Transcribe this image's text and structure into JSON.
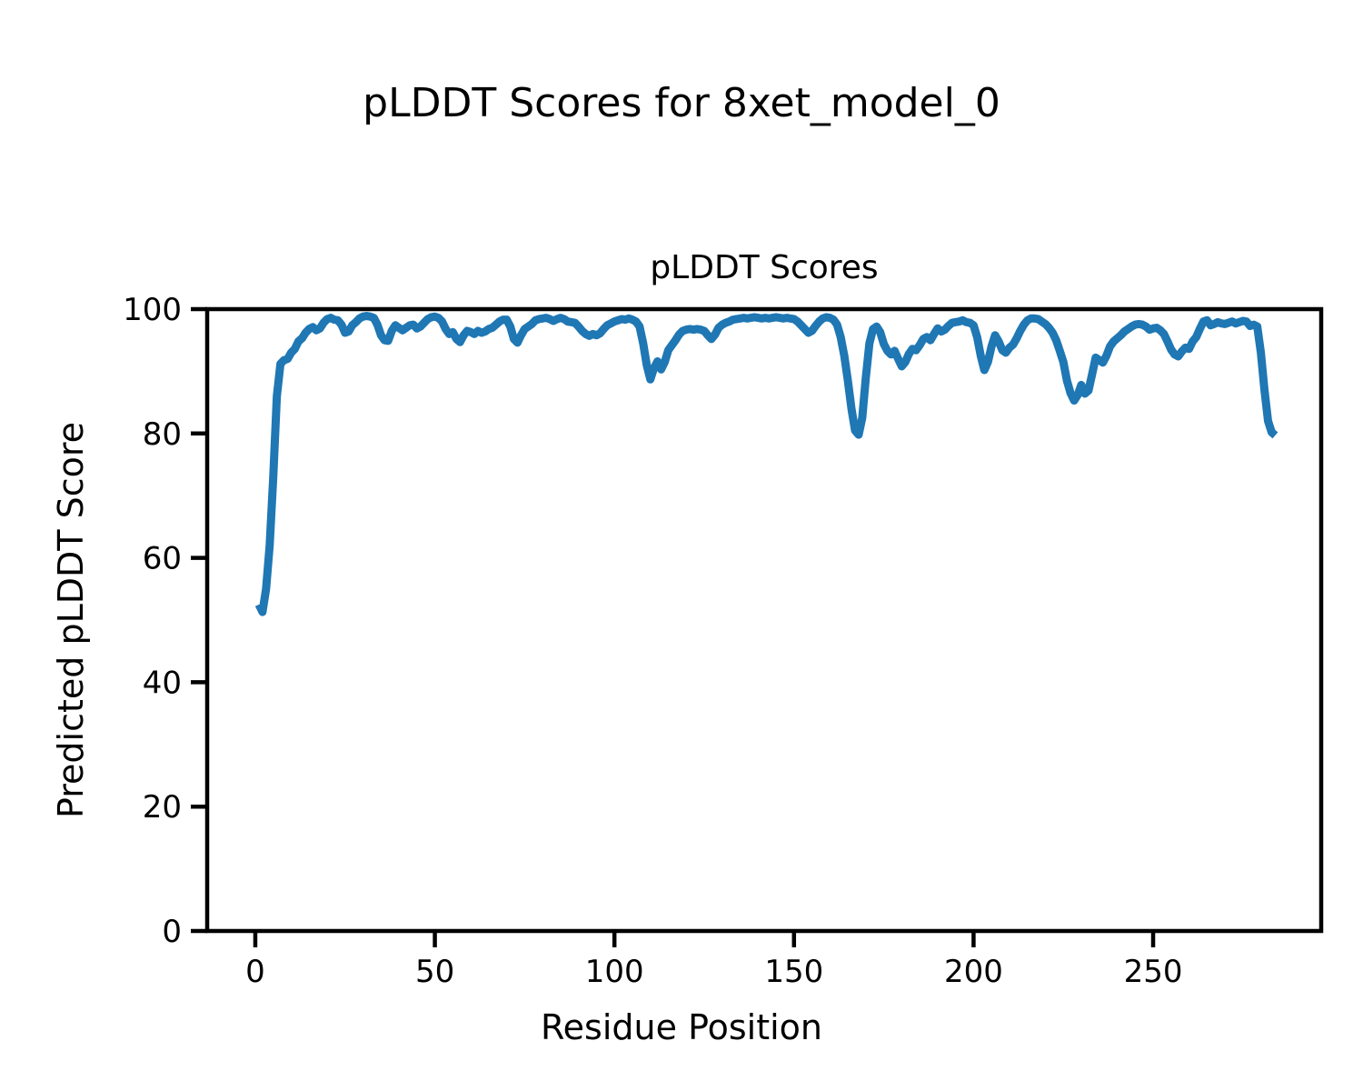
{
  "figure": {
    "title": "pLDDT Scores for 8xet_model_0",
    "axes_title": "pLDDT Scores",
    "xlabel": "Residue Position",
    "ylabel": "Predicted pLDDT Score"
  },
  "chart_data": {
    "type": "line",
    "title": "pLDDT Scores",
    "xlabel": "Residue Position",
    "ylabel": "Predicted pLDDT Score",
    "legend": "none",
    "grid": false,
    "line_color": "#1f77b4",
    "line_width": 9,
    "xlim": [
      -13.4,
      296.8
    ],
    "ylim": [
      0,
      100
    ],
    "xticks": [
      0,
      50,
      100,
      150,
      200,
      250
    ],
    "yticks": [
      0,
      20,
      40,
      60,
      80,
      100
    ],
    "x_start": 1,
    "x_step": 1,
    "series": [
      {
        "name": "pLDDT",
        "values": [
          52.5,
          51.3,
          55,
          62,
          73,
          86,
          91.2,
          91.8,
          92,
          93,
          93.6,
          94.8,
          95.3,
          96.2,
          96.8,
          97.1,
          96.6,
          96.9,
          97.8,
          98.4,
          98.6,
          98.3,
          98.2,
          97.5,
          96.2,
          96.4,
          97.4,
          97.9,
          98.5,
          98.8,
          98.9,
          98.8,
          98.6,
          97.5,
          95.8,
          95,
          94.9,
          96.5,
          97.4,
          97,
          96.6,
          97,
          97.4,
          97.5,
          96.9,
          97.2,
          97.8,
          98.4,
          98.7,
          98.8,
          98.6,
          98,
          96.8,
          96,
          96.3,
          95.2,
          94.7,
          95.8,
          96.5,
          96.3,
          96,
          96.5,
          96.2,
          96.4,
          96.8,
          97,
          97.5,
          98,
          98.3,
          98.3,
          97.2,
          95.2,
          94.6,
          95.8,
          96.8,
          97.2,
          97.6,
          98.2,
          98.4,
          98.5,
          98.6,
          98.4,
          98.1,
          98.4,
          98.6,
          98.4,
          98,
          97.9,
          97.8,
          97.2,
          96.5,
          96,
          95.7,
          96,
          95.8,
          96.1,
          96.8,
          97.4,
          97.7,
          98,
          98.2,
          98.4,
          98.3,
          98.5,
          98.3,
          98,
          97.2,
          94.5,
          91,
          88.7,
          90.5,
          91.6,
          90.3,
          91.5,
          93.4,
          94.2,
          95,
          95.9,
          96.5,
          96.7,
          96.8,
          96.7,
          96.8,
          96.7,
          96.5,
          95.8,
          95.2,
          95.9,
          97,
          97.5,
          97.8,
          98,
          98.3,
          98.4,
          98.5,
          98.6,
          98.5,
          98.6,
          98.7,
          98.6,
          98.5,
          98.6,
          98.5,
          98.6,
          98.7,
          98.6,
          98.5,
          98.6,
          98.5,
          98.4,
          98,
          97.4,
          96.8,
          96.2,
          96.5,
          97.3,
          98,
          98.5,
          98.7,
          98.6,
          98.3,
          97.5,
          95.5,
          92.5,
          88.5,
          84,
          80.5,
          79.8,
          82.5,
          89,
          94.5,
          96.8,
          97.2,
          96.3,
          94.4,
          93.3,
          92.7,
          93.3,
          92,
          90.8,
          91.5,
          92.8,
          93.6,
          93.4,
          94.2,
          95.2,
          95.5,
          95,
          96,
          96.9,
          96.4,
          96.7,
          97.3,
          97.8,
          97.9,
          98,
          98.2,
          97.9,
          97.8,
          97.4,
          95.5,
          92.5,
          90.2,
          91.5,
          94,
          95.8,
          94.8,
          93.4,
          93,
          93.8,
          94.3,
          95.3,
          96.5,
          97.5,
          98.2,
          98.5,
          98.5,
          98.4,
          98,
          97.6,
          97,
          96.2,
          95,
          93.3,
          91.5,
          88.5,
          86.5,
          85.3,
          86.2,
          87.8,
          86.4,
          86.9,
          89.5,
          92.2,
          91.8,
          91.4,
          92.5,
          94,
          94.8,
          95.3,
          95.8,
          96.4,
          96.8,
          97.2,
          97.5,
          97.6,
          97.5,
          97.2,
          96.7,
          96.9,
          97,
          96.6,
          96,
          94.8,
          93.5,
          92.7,
          92.4,
          93.2,
          93.8,
          93.6,
          94.8,
          95.5,
          96.8,
          98,
          98.2,
          97.4,
          97.6,
          97.9,
          97.7,
          97.6,
          97.8,
          98,
          97.7,
          97.9,
          98.1,
          98,
          97.3,
          97.5,
          97.2,
          93,
          87,
          82,
          80.2,
          79.7
        ]
      }
    ]
  }
}
